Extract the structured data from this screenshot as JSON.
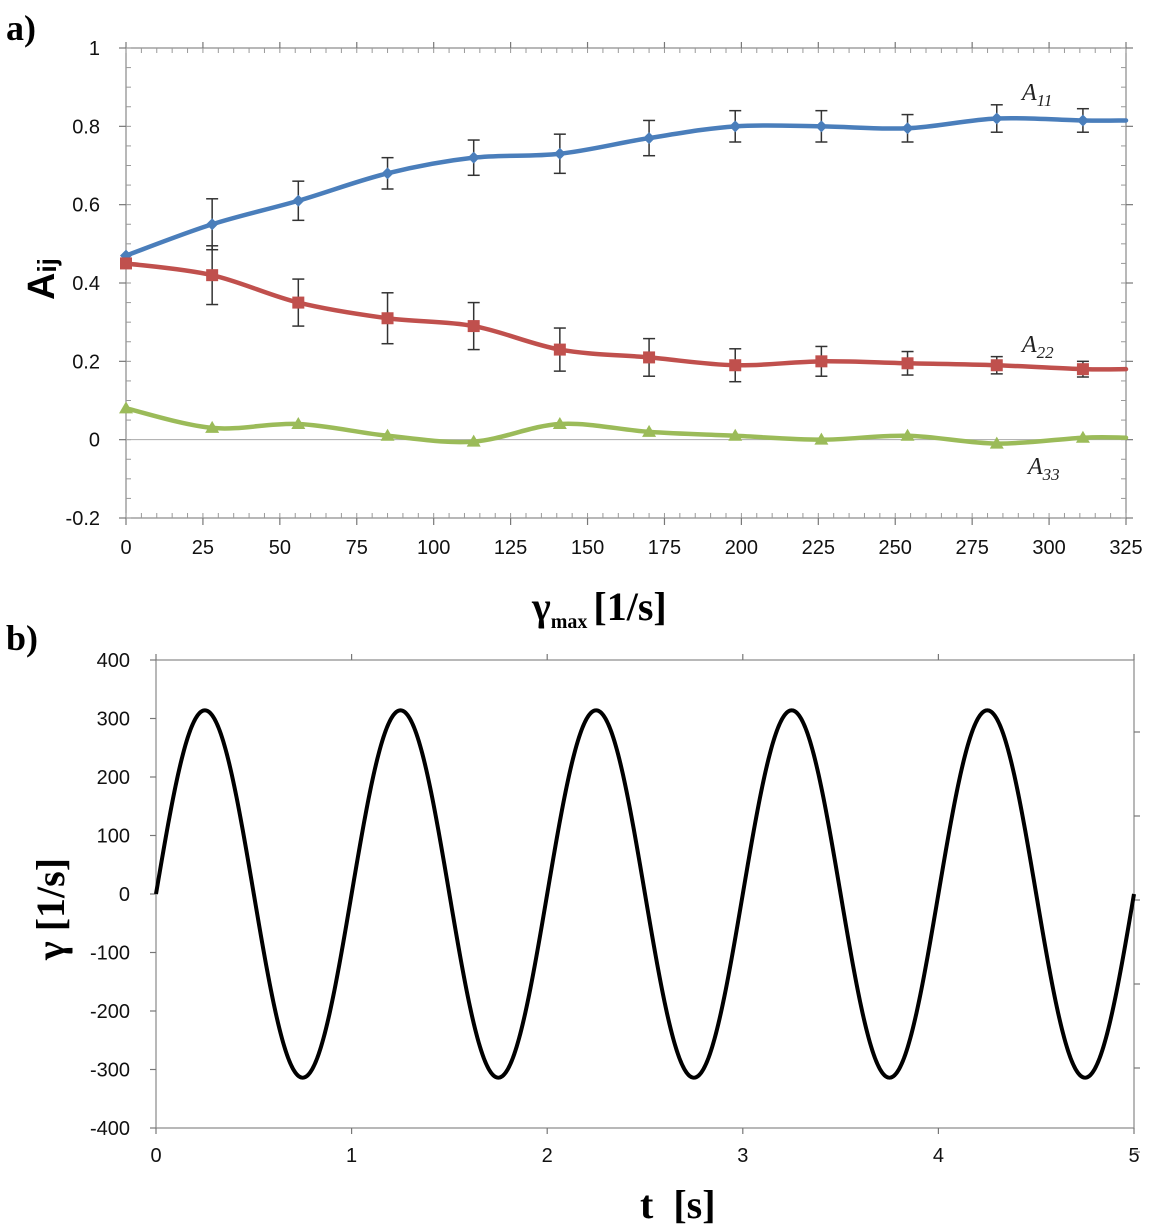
{
  "chart_data": [
    {
      "panel_label": "a)",
      "type": "line",
      "xlabel": "γ",
      "xlabel_sub": "max",
      "xlabel_unit": "[1/s]",
      "ylabel": "A",
      "ylabel_sub": "ij",
      "xlim": [
        0,
        325
      ],
      "ylim": [
        -0.2,
        1
      ],
      "xticks": [
        0,
        25,
        50,
        75,
        100,
        125,
        150,
        175,
        200,
        225,
        250,
        275,
        300,
        325
      ],
      "yticks": [
        -0.2,
        0,
        0.2,
        0.4,
        0.6,
        0.8,
        1
      ],
      "ytick_labels": [
        "-0.2",
        "0",
        "0.2",
        "0.4",
        "0.6",
        "0.8",
        "1"
      ],
      "x": [
        0,
        28,
        56,
        85,
        113,
        141,
        170,
        198,
        226,
        254,
        283,
        311,
        325
      ],
      "series": [
        {
          "name": "A",
          "name_sub": "11",
          "color": "#4a7ebb",
          "marker": "diamond",
          "values": [
            0.47,
            0.55,
            0.61,
            0.68,
            0.72,
            0.73,
            0.77,
            0.8,
            0.8,
            0.795,
            0.82,
            0.815,
            0.815
          ],
          "errors": [
            0,
            0.065,
            0.05,
            0.04,
            0.045,
            0.05,
            0.045,
            0.04,
            0.04,
            0.035,
            0.035,
            0.03,
            0
          ]
        },
        {
          "name": "A",
          "name_sub": "22",
          "color": "#c0504d",
          "marker": "square",
          "values": [
            0.45,
            0.42,
            0.35,
            0.31,
            0.29,
            0.23,
            0.21,
            0.19,
            0.2,
            0.195,
            0.19,
            0.18,
            0.18
          ],
          "errors": [
            0,
            0.075,
            0.06,
            0.065,
            0.06,
            0.055,
            0.048,
            0.042,
            0.038,
            0.03,
            0.022,
            0.02,
            0
          ]
        },
        {
          "name": "A",
          "name_sub": "33",
          "color": "#9bbb59",
          "marker": "triangle",
          "values": [
            0.08,
            0.03,
            0.04,
            0.01,
            -0.005,
            0.04,
            0.02,
            0.01,
            0.0,
            0.01,
            -0.01,
            0.005,
            0.005
          ],
          "errors": []
        }
      ]
    },
    {
      "panel_label": "b)",
      "type": "line",
      "xlabel": "t  [s]",
      "ylabel": "γ [1/s]",
      "xlim": [
        0,
        5
      ],
      "ylim": [
        -400,
        400
      ],
      "xticks": [
        0,
        1,
        2,
        3,
        4,
        5
      ],
      "yticks": [
        -400,
        -300,
        -200,
        -100,
        0,
        100,
        200,
        300,
        400
      ],
      "series": [
        {
          "color": "#000000",
          "function": "amplitude * sin(2π · frequency · t)",
          "amplitude": 314,
          "frequency_hz": 1
        }
      ]
    }
  ]
}
